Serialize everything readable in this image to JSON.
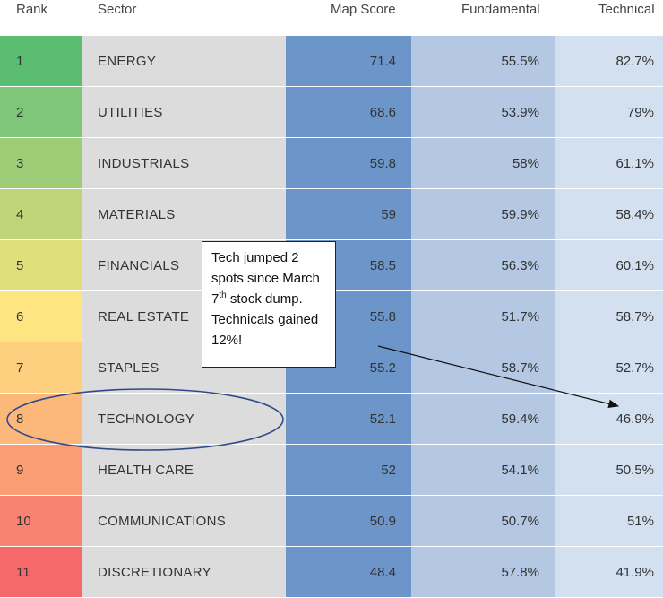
{
  "headers": {
    "rank": "Rank",
    "sector": "Sector",
    "map_score": "Map Score",
    "fundamental": "Fundamental",
    "technical": "Technical"
  },
  "rows": [
    {
      "rank": "1",
      "sector": "ENERGY",
      "map_score": "71.4",
      "fundamental": "55.5%",
      "technical": "82.7%",
      "rank_color": "#5bbd72"
    },
    {
      "rank": "2",
      "sector": "UTILITIES",
      "map_score": "68.6",
      "fundamental": "53.9%",
      "technical": "79%",
      "rank_color": "#7ec67a"
    },
    {
      "rank": "3",
      "sector": "INDUSTRIALS",
      "map_score": "59.8",
      "fundamental": "58%",
      "technical": "61.1%",
      "rank_color": "#9ecd78"
    },
    {
      "rank": "4",
      "sector": "MATERIALS",
      "map_score": "59",
      "fundamental": "59.9%",
      "technical": "58.4%",
      "rank_color": "#bfd579"
    },
    {
      "rank": "5",
      "sector": "FINANCIALS",
      "map_score": "58.5",
      "fundamental": "56.3%",
      "technical": "60.1%",
      "rank_color": "#dfe07c"
    },
    {
      "rank": "6",
      "sector": "REAL ESTATE",
      "map_score": "55.8",
      "fundamental": "51.7%",
      "technical": "58.7%",
      "rank_color": "#fde681"
    },
    {
      "rank": "7",
      "sector": "STAPLES",
      "map_score": "55.2",
      "fundamental": "58.7%",
      "technical": "52.7%",
      "rank_color": "#fdd07f"
    },
    {
      "rank": "8",
      "sector": "TECHNOLOGY",
      "map_score": "52.1",
      "fundamental": "59.4%",
      "technical": "46.9%",
      "rank_color": "#fcb77a"
    },
    {
      "rank": "9",
      "sector": "HEALTH CARE",
      "map_score": "52",
      "fundamental": "54.1%",
      "technical": "50.5%",
      "rank_color": "#fa9d75"
    },
    {
      "rank": "10",
      "sector": "COMMUNICATIONS",
      "map_score": "50.9",
      "fundamental": "50.7%",
      "technical": "51%",
      "rank_color": "#f88370"
    },
    {
      "rank": "11",
      "sector": "DISCRETIONARY",
      "map_score": "48.4",
      "fundamental": "57.8%",
      "technical": "41.9%",
      "rank_color": "#f6696b"
    }
  ],
  "callout": {
    "text_before_sup": "Tech jumped 2 spots since March 7",
    "sup": "th",
    "text_after_sup": " stock dump. Technicals gained 12%!"
  },
  "colors": {
    "sector_bg": "#dcdcdc",
    "map_score_bg": "#6c95c9",
    "fundamental_bg": "#b4c8e3",
    "technical_bg": "#d3e0f0",
    "ellipse_stroke": "#2f4a8a"
  },
  "annotations": {
    "highlight_shape": "ellipse",
    "highlight_row": "TECHNOLOGY",
    "arrow_target": "46.9%"
  }
}
